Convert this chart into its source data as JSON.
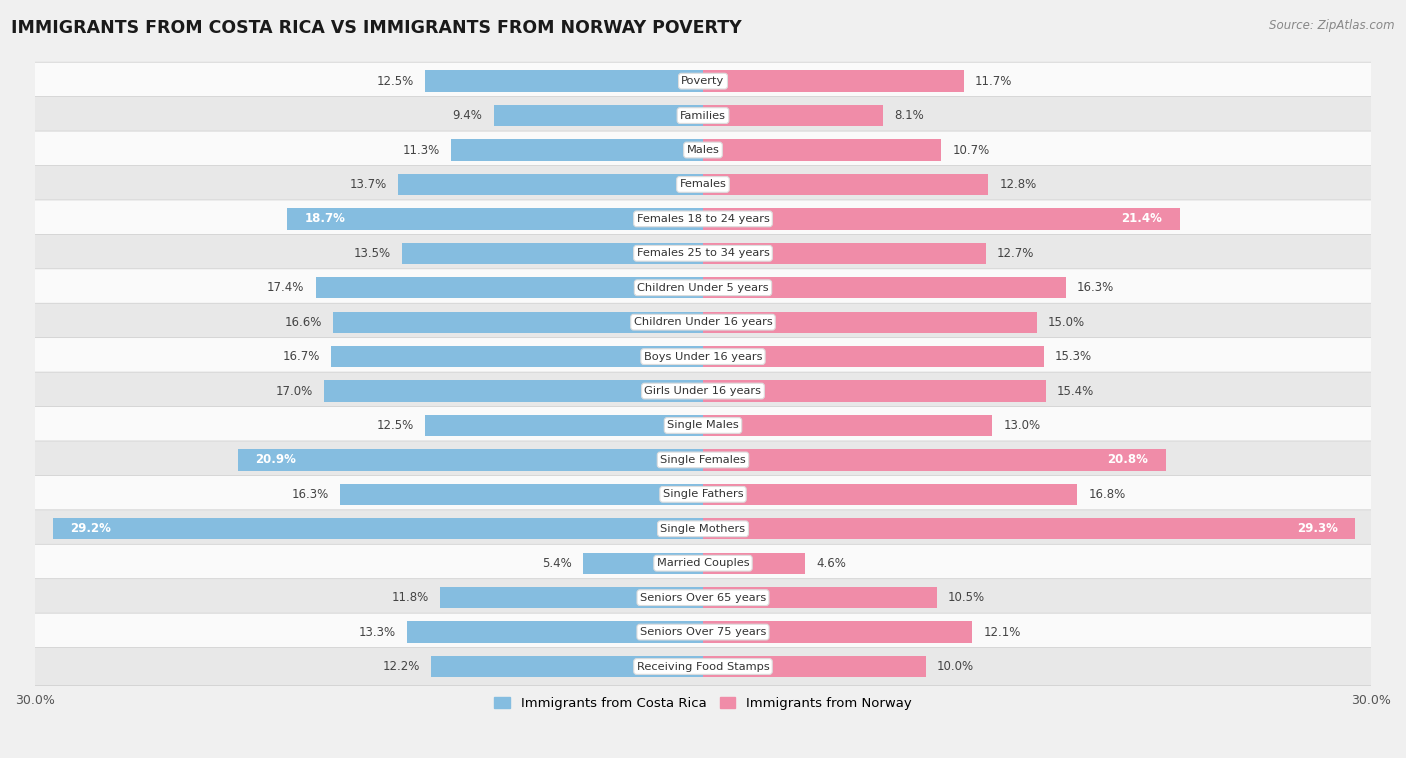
{
  "title": "IMMIGRANTS FROM COSTA RICA VS IMMIGRANTS FROM NORWAY POVERTY",
  "source": "Source: ZipAtlas.com",
  "categories": [
    "Poverty",
    "Families",
    "Males",
    "Females",
    "Females 18 to 24 years",
    "Females 25 to 34 years",
    "Children Under 5 years",
    "Children Under 16 years",
    "Boys Under 16 years",
    "Girls Under 16 years",
    "Single Males",
    "Single Females",
    "Single Fathers",
    "Single Mothers",
    "Married Couples",
    "Seniors Over 65 years",
    "Seniors Over 75 years",
    "Receiving Food Stamps"
  ],
  "costa_rica": [
    12.5,
    9.4,
    11.3,
    13.7,
    18.7,
    13.5,
    17.4,
    16.6,
    16.7,
    17.0,
    12.5,
    20.9,
    16.3,
    29.2,
    5.4,
    11.8,
    13.3,
    12.2
  ],
  "norway": [
    11.7,
    8.1,
    10.7,
    12.8,
    21.4,
    12.7,
    16.3,
    15.0,
    15.3,
    15.4,
    13.0,
    20.8,
    16.8,
    29.3,
    4.6,
    10.5,
    12.1,
    10.0
  ],
  "costa_rica_color": "#85BDE0",
  "norway_color": "#F08CA8",
  "background_color": "#f0f0f0",
  "row_color_light": "#fafafa",
  "row_color_dark": "#e8e8e8",
  "max_value": 30.0,
  "legend_costa_rica": "Immigrants from Costa Rica",
  "legend_norway": "Immigrants from Norway",
  "white_label_threshold": 17.5
}
